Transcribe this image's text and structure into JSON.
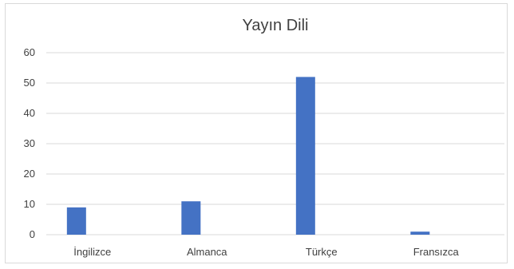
{
  "chart_data": {
    "type": "bar",
    "title": "Yayın Dili",
    "categories": [
      "İngilizce",
      "Almanca",
      "Türkçe",
      "Fransızca"
    ],
    "values": [
      9,
      11,
      52,
      1
    ],
    "xlabel": "",
    "ylabel": "",
    "ylim": [
      0,
      60
    ],
    "yticks": [
      "0",
      "10",
      "20",
      "30",
      "40",
      "50",
      "60"
    ],
    "grid": true,
    "legend": "none",
    "bar_color": "#4472C4",
    "grid_color": "#d9d9d9"
  }
}
